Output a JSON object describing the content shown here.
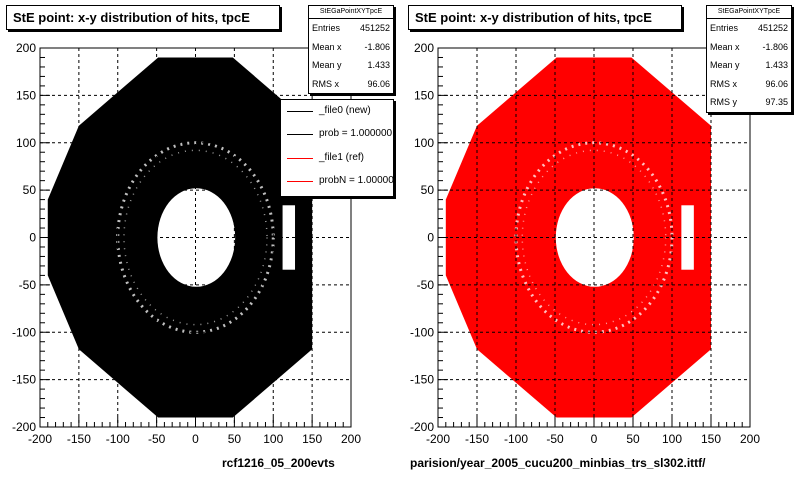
{
  "chart_data": [
    {
      "type": "heatmap",
      "title": "StE point: x-y distribution of hits, tpcE",
      "xlim": [
        -200,
        200
      ],
      "ylim": [
        -200,
        200
      ],
      "x_ticks": [
        -200,
        -150,
        -100,
        -50,
        0,
        50,
        100,
        150,
        200
      ],
      "y_ticks": [
        -200,
        -150,
        -100,
        -50,
        0,
        50,
        100,
        150,
        200
      ],
      "grid": true,
      "fill_color": "#000000",
      "stats": {
        "name": "StEGaPointXYTpcE",
        "rows": [
          {
            "label": "Entries",
            "value": "451252"
          },
          {
            "label": "Mean x",
            "value": "-1.806"
          },
          {
            "label": "Mean y",
            "value": "1.433"
          },
          {
            "label": "RMS x",
            "value": "96.06"
          }
        ]
      },
      "legend": {
        "placement": "right",
        "entries": [
          {
            "label": "_file0 (new)",
            "color": "#000000"
          },
          {
            "label": "prob = 1.000000",
            "color": "#000000"
          },
          {
            "label": "_file1 (ref)",
            "color": "#ff0000"
          },
          {
            "label": "probN = 1.000000",
            "color": "#ff0000"
          }
        ]
      },
      "footer": "rcf1216_05_200evts"
    },
    {
      "type": "heatmap",
      "title": "StE point: x-y distribution of hits, tpcE",
      "xlim": [
        -200,
        200
      ],
      "ylim": [
        -200,
        200
      ],
      "x_ticks": [
        -200,
        -150,
        -100,
        -50,
        0,
        50,
        100,
        150,
        200
      ],
      "y_ticks": [
        -200,
        -150,
        -100,
        -50,
        0,
        50,
        100,
        150,
        200
      ],
      "grid": true,
      "fill_color": "#ff0000",
      "stats": {
        "name": "StEGaPointXYTpcE",
        "rows": [
          {
            "label": "Entries",
            "value": "451252"
          },
          {
            "label": "Mean x",
            "value": "-1.806"
          },
          {
            "label": "Mean y",
            "value": "1.433"
          },
          {
            "label": "RMS x",
            "value": "96.06"
          },
          {
            "label": "RMS y",
            "value": "97.35"
          }
        ]
      },
      "footer": "parision/year_2005_cucu200_minbias_trs_sl302.ittf/"
    }
  ]
}
